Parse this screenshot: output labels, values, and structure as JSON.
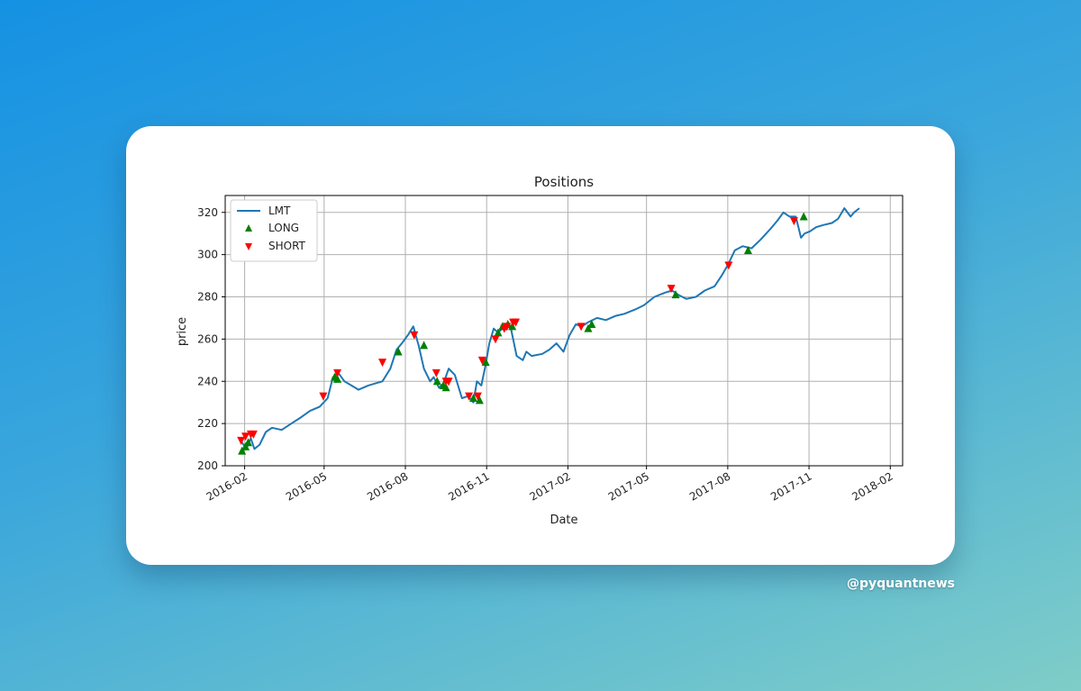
{
  "credit": "@pyquantnews",
  "chart_data": {
    "type": "line",
    "title": "Positions",
    "xlabel": "Date",
    "ylabel": "price",
    "ylim": [
      200,
      328
    ],
    "xlim": [
      "2016-01-10",
      "2018-02-15"
    ],
    "grid": true,
    "legend_position": "top-left",
    "x_ticks": [
      "2016-02-01",
      "2016-05-01",
      "2016-08-01",
      "2016-11-01",
      "2017-02-01",
      "2017-05-01",
      "2017-08-01",
      "2017-11-01",
      "2018-02-01"
    ],
    "x_tick_labels": [
      "2016-02",
      "2016-05",
      "2016-08",
      "2016-11",
      "2017-02",
      "2017-05",
      "2017-08",
      "2017-11",
      "2018-02"
    ],
    "y_ticks": [
      200,
      220,
      240,
      260,
      280,
      300,
      320
    ],
    "series": [
      {
        "name": "LMT",
        "kind": "line",
        "color": "#1f77b4",
        "x": [
          "2016-01-29",
          "2016-02-03",
          "2016-02-08",
          "2016-02-12",
          "2016-02-18",
          "2016-02-25",
          "2016-03-03",
          "2016-03-14",
          "2016-03-25",
          "2016-04-05",
          "2016-04-15",
          "2016-04-26",
          "2016-05-05",
          "2016-05-11",
          "2016-05-17",
          "2016-05-24",
          "2016-06-01",
          "2016-06-09",
          "2016-06-20",
          "2016-06-28",
          "2016-07-06",
          "2016-07-15",
          "2016-07-22",
          "2016-07-28",
          "2016-08-04",
          "2016-08-10",
          "2016-08-16",
          "2016-08-22",
          "2016-08-29",
          "2016-09-02",
          "2016-09-08",
          "2016-09-13",
          "2016-09-19",
          "2016-09-26",
          "2016-10-04",
          "2016-10-11",
          "2016-10-17",
          "2016-10-21",
          "2016-10-26",
          "2016-10-31",
          "2016-11-04",
          "2016-11-09",
          "2016-11-14",
          "2016-11-21",
          "2016-11-28",
          "2016-12-05",
          "2016-12-12",
          "2016-12-16",
          "2016-12-22",
          "2017-01-03",
          "2017-01-11",
          "2017-01-19",
          "2017-01-27",
          "2017-02-03",
          "2017-02-10",
          "2017-02-17",
          "2017-02-24",
          "2017-03-06",
          "2017-03-16",
          "2017-03-27",
          "2017-04-06",
          "2017-04-18",
          "2017-04-28",
          "2017-05-10",
          "2017-05-22",
          "2017-05-30",
          "2017-06-06",
          "2017-06-15",
          "2017-06-26",
          "2017-07-06",
          "2017-07-17",
          "2017-07-25",
          "2017-08-01",
          "2017-08-09",
          "2017-08-18",
          "2017-08-28",
          "2017-09-07",
          "2017-09-18",
          "2017-09-26",
          "2017-10-03",
          "2017-10-10",
          "2017-10-17",
          "2017-10-23",
          "2017-10-27",
          "2017-11-02",
          "2017-11-09",
          "2017-11-17",
          "2017-11-27",
          "2017-12-04",
          "2017-12-11",
          "2017-12-18",
          "2017-12-22",
          "2017-12-28"
        ],
        "y": [
          211,
          208,
          213,
          208,
          210,
          216,
          218,
          217,
          220,
          223,
          226,
          228,
          232,
          242,
          244,
          240,
          238,
          236,
          238,
          239,
          240,
          246,
          255,
          258,
          262,
          266,
          257,
          246,
          240,
          242,
          237,
          239,
          246,
          243,
          232,
          233,
          230,
          240,
          238,
          248,
          258,
          265,
          263,
          266,
          266,
          252,
          250,
          254,
          252,
          253,
          255,
          258,
          254,
          262,
          267,
          266,
          268,
          270,
          269,
          271,
          272,
          274,
          276,
          280,
          282,
          283,
          281,
          279,
          280,
          283,
          285,
          290,
          295,
          302,
          304,
          303,
          307,
          312,
          316,
          320,
          318,
          318,
          308,
          310,
          311,
          313,
          314,
          315,
          317,
          322,
          318,
          320,
          322
        ]
      },
      {
        "name": "LONG",
        "kind": "marker-up",
        "color": "#008000",
        "x": [
          "2016-01-29",
          "2016-02-02",
          "2016-02-05",
          "2016-05-13",
          "2016-05-16",
          "2016-07-24",
          "2016-08-22",
          "2016-09-06",
          "2016-09-13",
          "2016-09-16",
          "2016-10-17",
          "2016-10-24",
          "2016-10-31",
          "2016-11-14",
          "2016-11-19",
          "2016-11-25",
          "2016-11-30",
          "2017-02-24",
          "2017-02-28",
          "2017-06-03",
          "2017-08-24",
          "2017-10-26"
        ],
        "y": [
          207,
          209,
          211,
          242,
          241,
          254,
          257,
          240,
          238,
          237,
          232,
          231,
          249,
          263,
          266,
          267,
          266,
          265,
          267,
          281,
          302,
          318
        ]
      },
      {
        "name": "SHORT",
        "kind": "marker-down",
        "color": "#ff0000",
        "x": [
          "2016-01-28",
          "2016-02-02",
          "2016-02-08",
          "2016-02-11",
          "2016-04-30",
          "2016-05-16",
          "2016-07-06",
          "2016-08-11",
          "2016-09-05",
          "2016-09-16",
          "2016-09-19",
          "2016-10-12",
          "2016-10-22",
          "2016-10-27",
          "2016-11-11",
          "2016-11-21",
          "2016-11-24",
          "2016-12-01",
          "2016-12-04",
          "2017-02-16",
          "2017-05-29",
          "2017-08-02",
          "2017-10-15"
        ],
        "y": [
          212,
          214,
          215,
          215,
          233,
          244,
          249,
          262,
          244,
          240,
          240,
          233,
          233,
          250,
          260,
          265,
          266,
          268,
          268,
          266,
          284,
          295,
          316
        ]
      }
    ]
  }
}
